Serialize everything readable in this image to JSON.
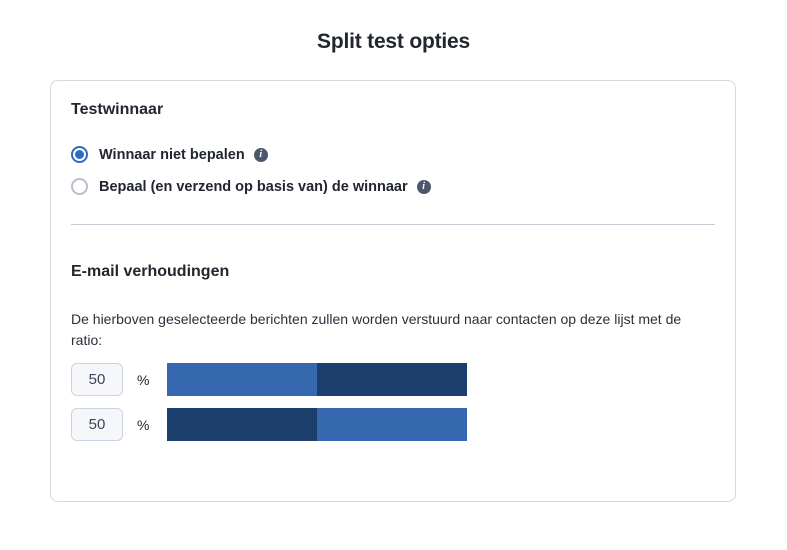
{
  "page": {
    "title": "Split test opties"
  },
  "test_winner": {
    "heading": "Testwinnaar",
    "options": [
      {
        "label": "Winnaar niet bepalen",
        "selected": true,
        "info_icon": "info-icon"
      },
      {
        "label": "Bepaal (en verzend op basis van) de winnaar",
        "selected": false,
        "info_icon": "info-icon"
      }
    ]
  },
  "email_ratios": {
    "heading": "E-mail verhoudingen",
    "description": "De hierboven geselecteerde berichten zullen worden verstuurd naar contacten op deze lijst met de ratio:",
    "rows": [
      {
        "value": "50",
        "unit": "%",
        "segments": [
          {
            "color": "#3568ae",
            "pct": 50
          },
          {
            "color": "#1d3f6d",
            "pct": 50
          }
        ]
      },
      {
        "value": "50",
        "unit": "%",
        "segments": [
          {
            "color": "#1d3f6d",
            "pct": 50
          },
          {
            "color": "#3568ae",
            "pct": 50
          }
        ]
      }
    ]
  },
  "icons": {
    "info_glyph": "i"
  },
  "colors": {
    "accent_blue": "#2d6ac2",
    "bar_blue": "#3568ae",
    "bar_navy": "#1d3f6d",
    "text_dark": "#21262f",
    "info_icon_bg": "#4d576b",
    "card_border": "#d5d8e0",
    "input_bg": "#f5f7fb"
  }
}
